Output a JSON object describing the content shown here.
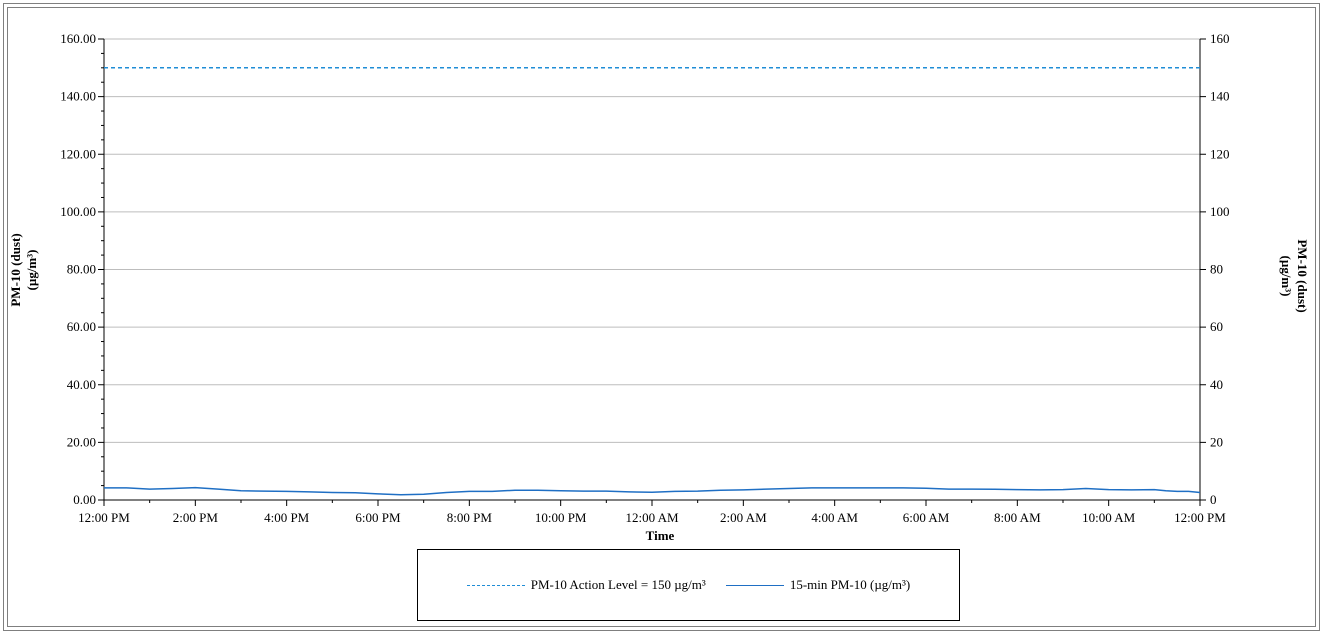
{
  "chart_data": {
    "type": "line",
    "xlabel": "Time",
    "ylabel_left": [
      "PM-10 (dust)",
      "(µg/m³)"
    ],
    "ylabel_right": [
      "PM-10 (dust)",
      "(µg/m³)"
    ],
    "x_range": [
      "12:00 PM",
      "12:00 PM (+1 day)"
    ],
    "x_tick_labels": [
      "12:00 PM",
      "2:00 PM",
      "4:00 PM",
      "6:00 PM",
      "8:00 PM",
      "10:00 PM",
      "12:00 AM",
      "2:00 AM",
      "4:00 AM",
      "6:00 AM",
      "8:00 AM",
      "10:00 AM",
      "12:00 PM"
    ],
    "ylim_left": [
      0,
      160
    ],
    "y_ticks_left": [
      "0.00",
      "20.00",
      "40.00",
      "60.00",
      "80.00",
      "100.00",
      "120.00",
      "140.00",
      "160.00"
    ],
    "ylim_right": [
      0,
      160
    ],
    "y_ticks_right": [
      "0",
      "20",
      "40",
      "60",
      "80",
      "100",
      "120",
      "140",
      "160"
    ],
    "grid": true,
    "legend_position": "bottom",
    "series": [
      {
        "name": "PM-10 Action Level = 150 µg/m³",
        "style": "dashed",
        "color": "#1f8dd6",
        "x_hours": [
          0,
          24
        ],
        "values": [
          150,
          150
        ]
      },
      {
        "name": "15-min PM-10 (µg/m³)",
        "style": "solid",
        "color": "#1f6fc4",
        "x_hours": [
          0,
          0.5,
          1,
          1.5,
          2,
          2.5,
          3,
          3.5,
          4,
          4.5,
          5,
          5.5,
          6,
          6.5,
          7,
          7.5,
          8,
          8.5,
          9,
          9.5,
          10,
          10.5,
          11,
          11.5,
          12,
          12.5,
          13,
          13.5,
          14,
          14.5,
          15,
          15.5,
          16,
          16.5,
          17,
          17.5,
          18,
          18.5,
          19,
          19.5,
          20,
          20.5,
          21,
          21.5,
          22,
          22.5,
          23,
          23.25,
          23.5,
          23.75,
          24
        ],
        "values": [
          4.2,
          4.2,
          3.8,
          4.0,
          4.3,
          3.8,
          3.2,
          3.1,
          3.0,
          2.8,
          2.6,
          2.5,
          2.1,
          1.8,
          2.0,
          2.6,
          3.0,
          3.0,
          3.4,
          3.4,
          3.2,
          3.1,
          3.1,
          2.8,
          2.7,
          3.0,
          3.1,
          3.4,
          3.5,
          3.8,
          4.0,
          4.2,
          4.2,
          4.2,
          4.2,
          4.2,
          4.1,
          3.8,
          3.8,
          3.7,
          3.6,
          3.5,
          3.6,
          4.0,
          3.6,
          3.5,
          3.6,
          3.2,
          3.0,
          3.0,
          2.6
        ]
      }
    ]
  }
}
